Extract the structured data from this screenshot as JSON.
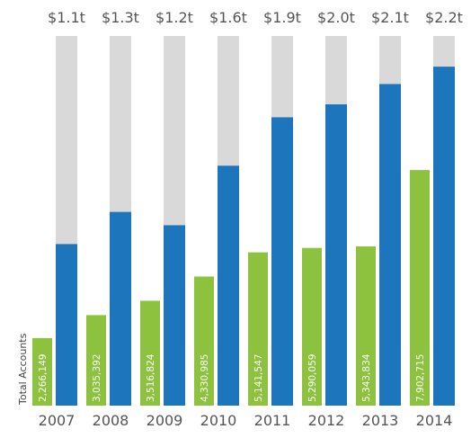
{
  "chart_data": {
    "type": "bar",
    "ylabel": "Total Accounts",
    "categories": [
      "2007",
      "2008",
      "2009",
      "2010",
      "2011",
      "2012",
      "2013",
      "2014"
    ],
    "totals": [
      "$1.1t",
      "$1.3t",
      "$1.2t",
      "$1.6t",
      "$1.9t",
      "$2.0t",
      "$2.1t",
      "$2.2t"
    ],
    "series": [
      {
        "values": [
          2266149,
          3035392,
          3516824,
          4330985,
          5141547,
          5290059,
          5343834,
          7902715
        ],
        "labels": [
          "2,266,149",
          "3,035,392",
          "3,516,824",
          "4,330,985",
          "5,141,547",
          "5,290,059",
          "5,343,834",
          "7,902,715"
        ],
        "color": "#8cc23e"
      },
      {
        "values": [
          0.437,
          0.524,
          0.488,
          0.649,
          0.78,
          0.815,
          0.87,
          0.917
        ],
        "color": "#1d75bc",
        "background_color": "#d9d9d9"
      }
    ],
    "ylim": [
      0,
      12400000
    ],
    "grid": false,
    "legend": "none"
  }
}
